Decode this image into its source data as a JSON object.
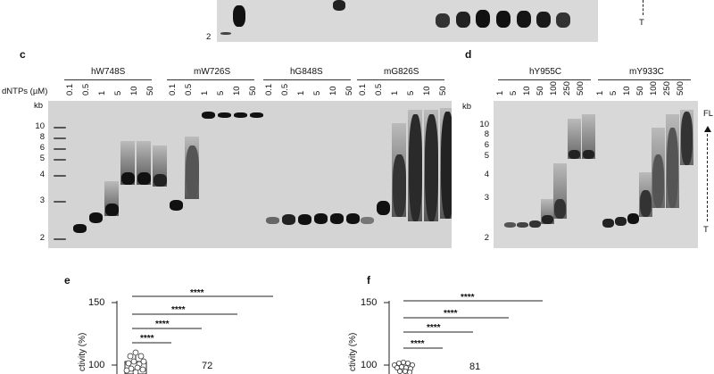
{
  "top_panel": {
    "ladder_labels": [
      "2"
    ],
    "right_label": "T"
  },
  "panel_c": {
    "letter": "c",
    "dntp_label": "dNTPs (µM)",
    "kb_label": "kb",
    "groups": [
      {
        "name": "hW748S",
        "lanes": [
          "0.1",
          "0.5",
          "1",
          "5",
          "10",
          "50"
        ]
      },
      {
        "name": "mW726S",
        "lanes": [
          "0.1",
          "0.5",
          "1",
          "5",
          "10",
          "50"
        ]
      },
      {
        "name": "hG848S",
        "lanes": [
          "0.1",
          "0.5",
          "1",
          "5",
          "10",
          "50"
        ]
      },
      {
        "name": "mG826S",
        "lanes": [
          "0.1",
          "0.5",
          "1",
          "5",
          "10",
          "50"
        ]
      }
    ],
    "ladder": [
      "10",
      "8",
      "6",
      "5",
      "4",
      "3",
      "2"
    ]
  },
  "panel_d": {
    "letter": "d",
    "kb_label": "kb",
    "groups": [
      {
        "name": "hY955C",
        "lanes": [
          "1",
          "5",
          "10",
          "50",
          "100",
          "250",
          "500"
        ]
      },
      {
        "name": "mY933C",
        "lanes": [
          "1",
          "5",
          "10",
          "50",
          "100",
          "250",
          "500"
        ]
      }
    ],
    "ladder": [
      "10",
      "8",
      "6",
      "5",
      "4",
      "3",
      "2"
    ],
    "fl_label": "FL",
    "t_label": "T"
  },
  "panel_e": {
    "letter": "e",
    "y_ticks": [
      "150",
      "100"
    ],
    "ylabel": "ctivity (%)",
    "significance": [
      "****",
      "****",
      "****",
      "****"
    ],
    "n_label": "72"
  },
  "panel_f": {
    "letter": "f",
    "y_ticks": [
      "150",
      "100"
    ],
    "ylabel": "ctivity (%)",
    "significance": [
      "****",
      "****",
      "****",
      "****"
    ],
    "n_label": "81"
  }
}
